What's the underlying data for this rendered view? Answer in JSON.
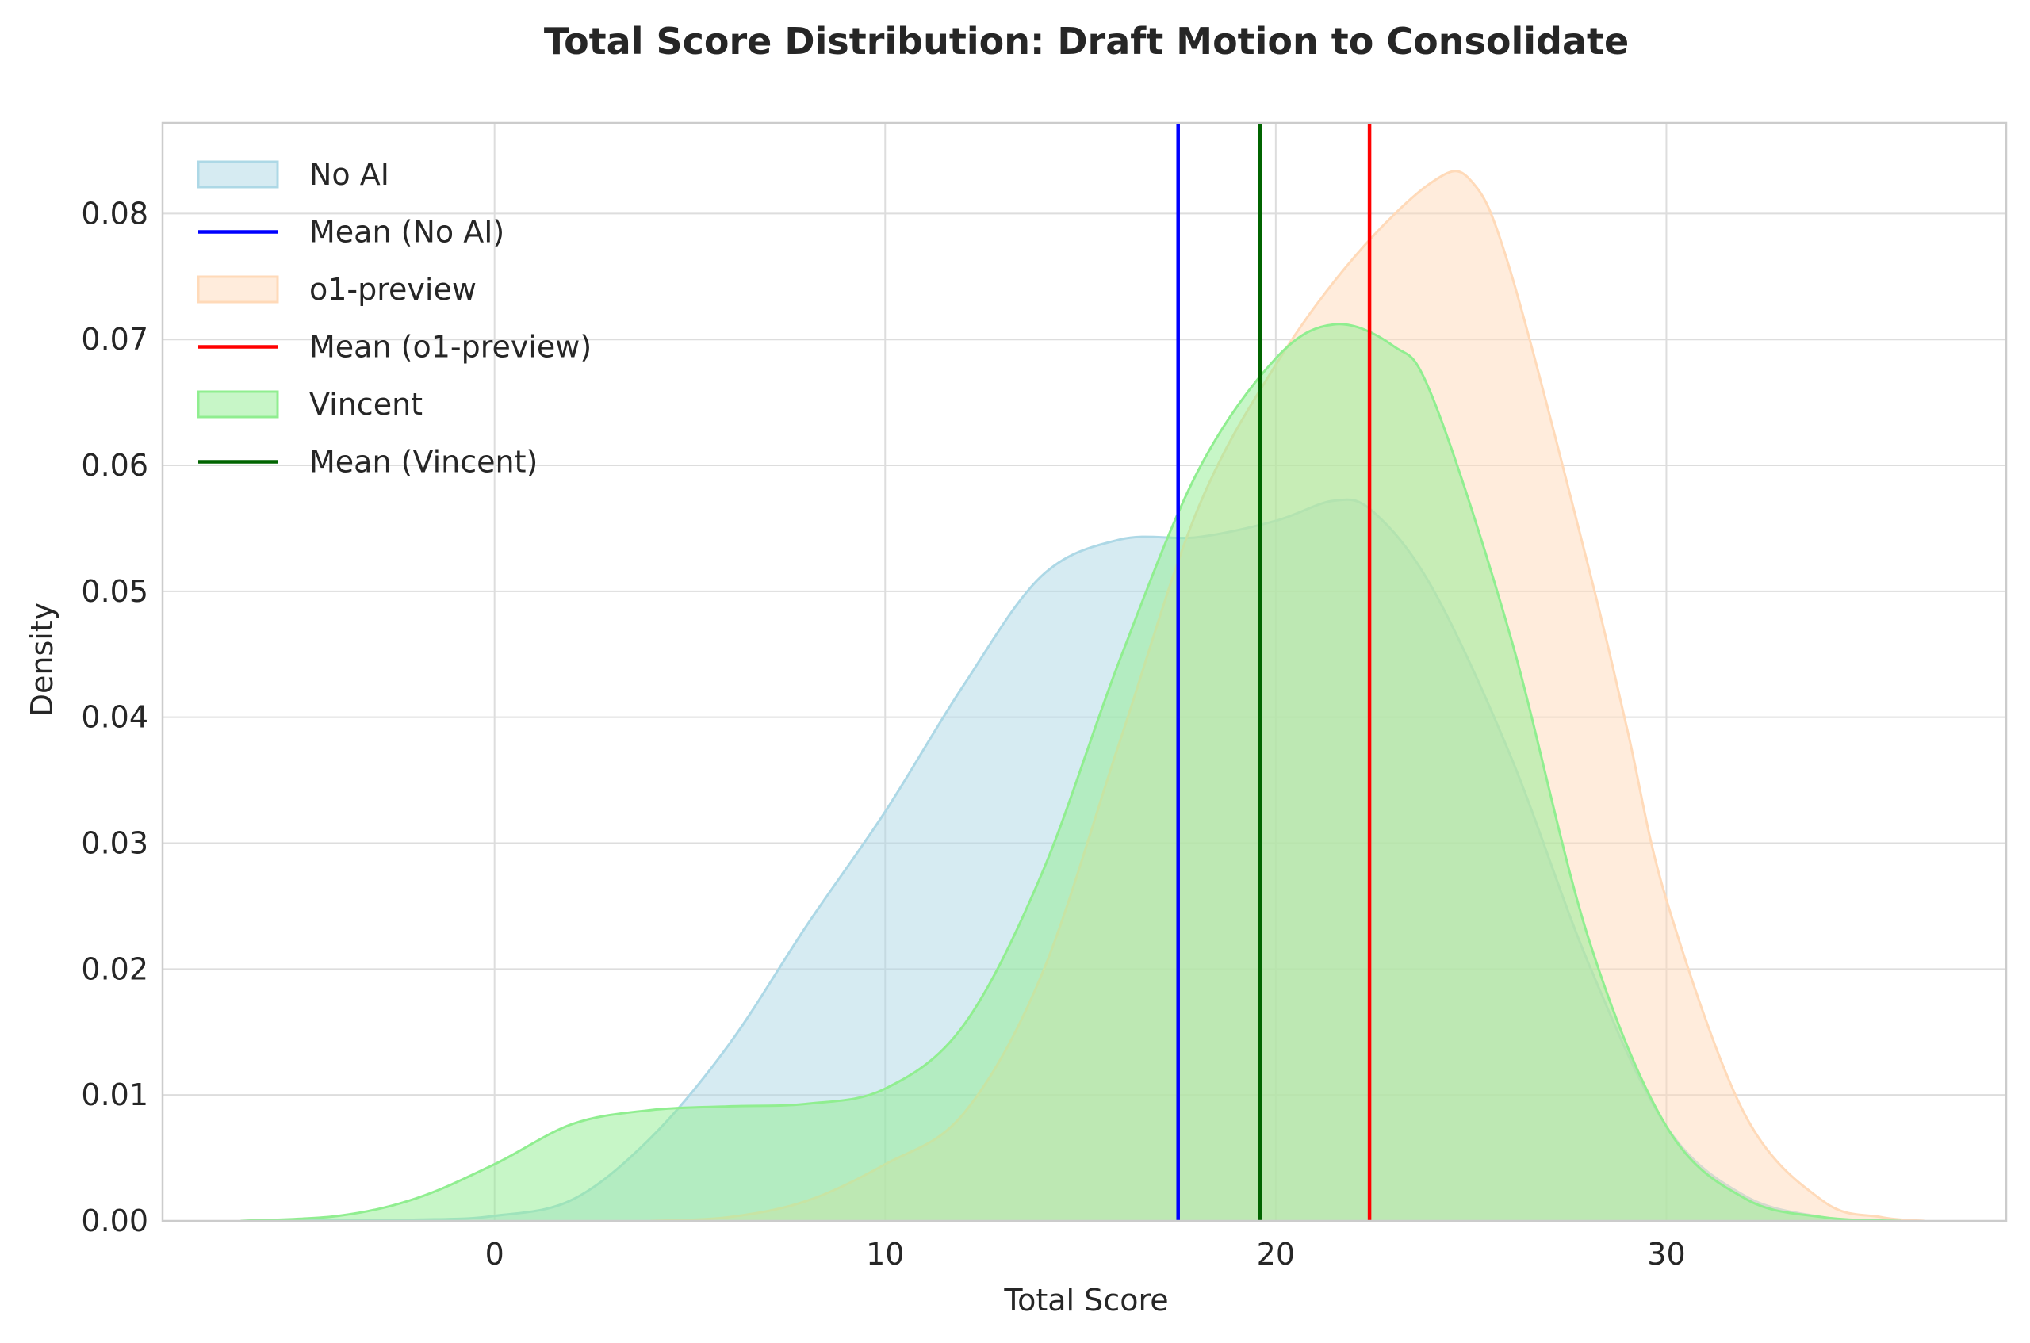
{
  "chart_data": {
    "type": "area",
    "title": "Total Score Distribution: Draft Motion to Consolidate",
    "xlabel": "Total Score",
    "ylabel": "Density",
    "xlim": [
      -8.5,
      38.7
    ],
    "ylim": [
      0,
      0.0872
    ],
    "xticks": [
      0,
      10,
      20,
      30
    ],
    "yticks": [
      0.0,
      0.01,
      0.02,
      0.03,
      0.04,
      0.05,
      0.06,
      0.07,
      0.08
    ],
    "grid": true,
    "legend_position": "upper-left",
    "series": [
      {
        "name": "No AI",
        "kind": "density",
        "fill": "#add8e6",
        "edge": "#add8e6",
        "fill_opacity": 0.5,
        "points": [
          [
            -6.5,
            0
          ],
          [
            -2,
            0.0001
          ],
          [
            0,
            0.0004
          ],
          [
            2,
            0.0017
          ],
          [
            4,
            0.0066
          ],
          [
            6,
            0.014
          ],
          [
            8,
            0.0235
          ],
          [
            10,
            0.0325
          ],
          [
            12,
            0.0425
          ],
          [
            14,
            0.0512
          ],
          [
            16,
            0.0541
          ],
          [
            18,
            0.0543
          ],
          [
            20,
            0.0556
          ],
          [
            21.5,
            0.0572
          ],
          [
            22.5,
            0.0563
          ],
          [
            24,
            0.0503
          ],
          [
            26,
            0.037
          ],
          [
            28,
            0.0205
          ],
          [
            30,
            0.0075
          ],
          [
            32,
            0.002
          ],
          [
            34,
            0.0003
          ],
          [
            35.5,
            0
          ]
        ]
      },
      {
        "name": "o1-preview",
        "kind": "density",
        "fill": "#ffdab9",
        "edge": "#ffdab9",
        "fill_opacity": 0.5,
        "points": [
          [
            4,
            0
          ],
          [
            6,
            0.0003
          ],
          [
            8,
            0.0016
          ],
          [
            10,
            0.0045
          ],
          [
            12,
            0.0085
          ],
          [
            14,
            0.0195
          ],
          [
            16,
            0.038
          ],
          [
            18,
            0.0565
          ],
          [
            20,
            0.068
          ],
          [
            22,
            0.0765
          ],
          [
            24,
            0.0825
          ],
          [
            25,
            0.0826
          ],
          [
            26,
            0.0755
          ],
          [
            28,
            0.052
          ],
          [
            29,
            0.039
          ],
          [
            30,
            0.0255
          ],
          [
            32,
            0.0085
          ],
          [
            34,
            0.0016
          ],
          [
            35.5,
            0.0003
          ],
          [
            36.6,
            0
          ]
        ]
      },
      {
        "name": "Vincent",
        "kind": "density",
        "fill": "#90ee90",
        "edge": "#90ee90",
        "fill_opacity": 0.5,
        "points": [
          [
            -6.5,
            0
          ],
          [
            -4,
            0.0004
          ],
          [
            -2,
            0.0018
          ],
          [
            0,
            0.0045
          ],
          [
            2,
            0.0077
          ],
          [
            4,
            0.0088
          ],
          [
            6,
            0.0091
          ],
          [
            8,
            0.0093
          ],
          [
            10,
            0.0105
          ],
          [
            12,
            0.0155
          ],
          [
            14,
            0.0275
          ],
          [
            16,
            0.0445
          ],
          [
            18,
            0.0595
          ],
          [
            20,
            0.0685
          ],
          [
            21.5,
            0.0712
          ],
          [
            23,
            0.0695
          ],
          [
            24,
            0.0655
          ],
          [
            26,
            0.0465
          ],
          [
            28,
            0.0225
          ],
          [
            30,
            0.0075
          ],
          [
            32,
            0.0018
          ],
          [
            34,
            0.0003
          ],
          [
            36,
            0
          ]
        ]
      },
      {
        "name": "Mean (No AI)",
        "kind": "vline",
        "x": 17.5,
        "color": "#0000ff"
      },
      {
        "name": "Mean (o1-preview)",
        "kind": "vline",
        "x": 22.4,
        "color": "#ff0000"
      },
      {
        "name": "Mean (Vincent)",
        "kind": "vline",
        "x": 19.6,
        "color": "#006400"
      }
    ],
    "legend": [
      "No AI",
      "Mean (No AI)",
      "o1-preview",
      "Mean (o1-preview)",
      "Vincent",
      "Mean (Vincent)"
    ]
  }
}
